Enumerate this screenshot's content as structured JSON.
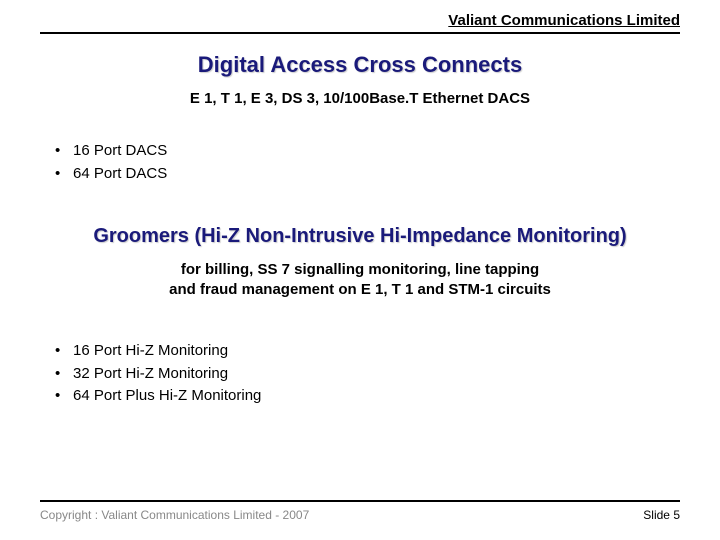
{
  "header": {
    "company": "Valiant Communications Limited"
  },
  "section1": {
    "title": "Digital Access Cross Connects",
    "subtitle": "E 1, T 1, E 3, DS 3, 10/100Base.T Ethernet DACS",
    "bullets": [
      "16 Port DACS",
      "64 Port DACS"
    ]
  },
  "section2": {
    "title": "Groomers (Hi-Z Non-Intrusive Hi-Impedance Monitoring)",
    "subtitle_line1": "for billing, SS 7 signalling monitoring, line tapping",
    "subtitle_line2": "and fraud management on E 1, T 1 and STM-1 circuits",
    "bullets": [
      "16 Port Hi-Z Monitoring",
      "32 Port Hi-Z Monitoring",
      "64 Port Plus Hi-Z Monitoring"
    ]
  },
  "footer": {
    "copyright": "Copyright : Valiant Communications Limited - 2007",
    "slide": "Slide 5"
  },
  "colors": {
    "title_color": "#1a1a7a",
    "text_color": "#000000",
    "footer_muted": "#888888",
    "background": "#ffffff",
    "rule_color": "#000000"
  }
}
